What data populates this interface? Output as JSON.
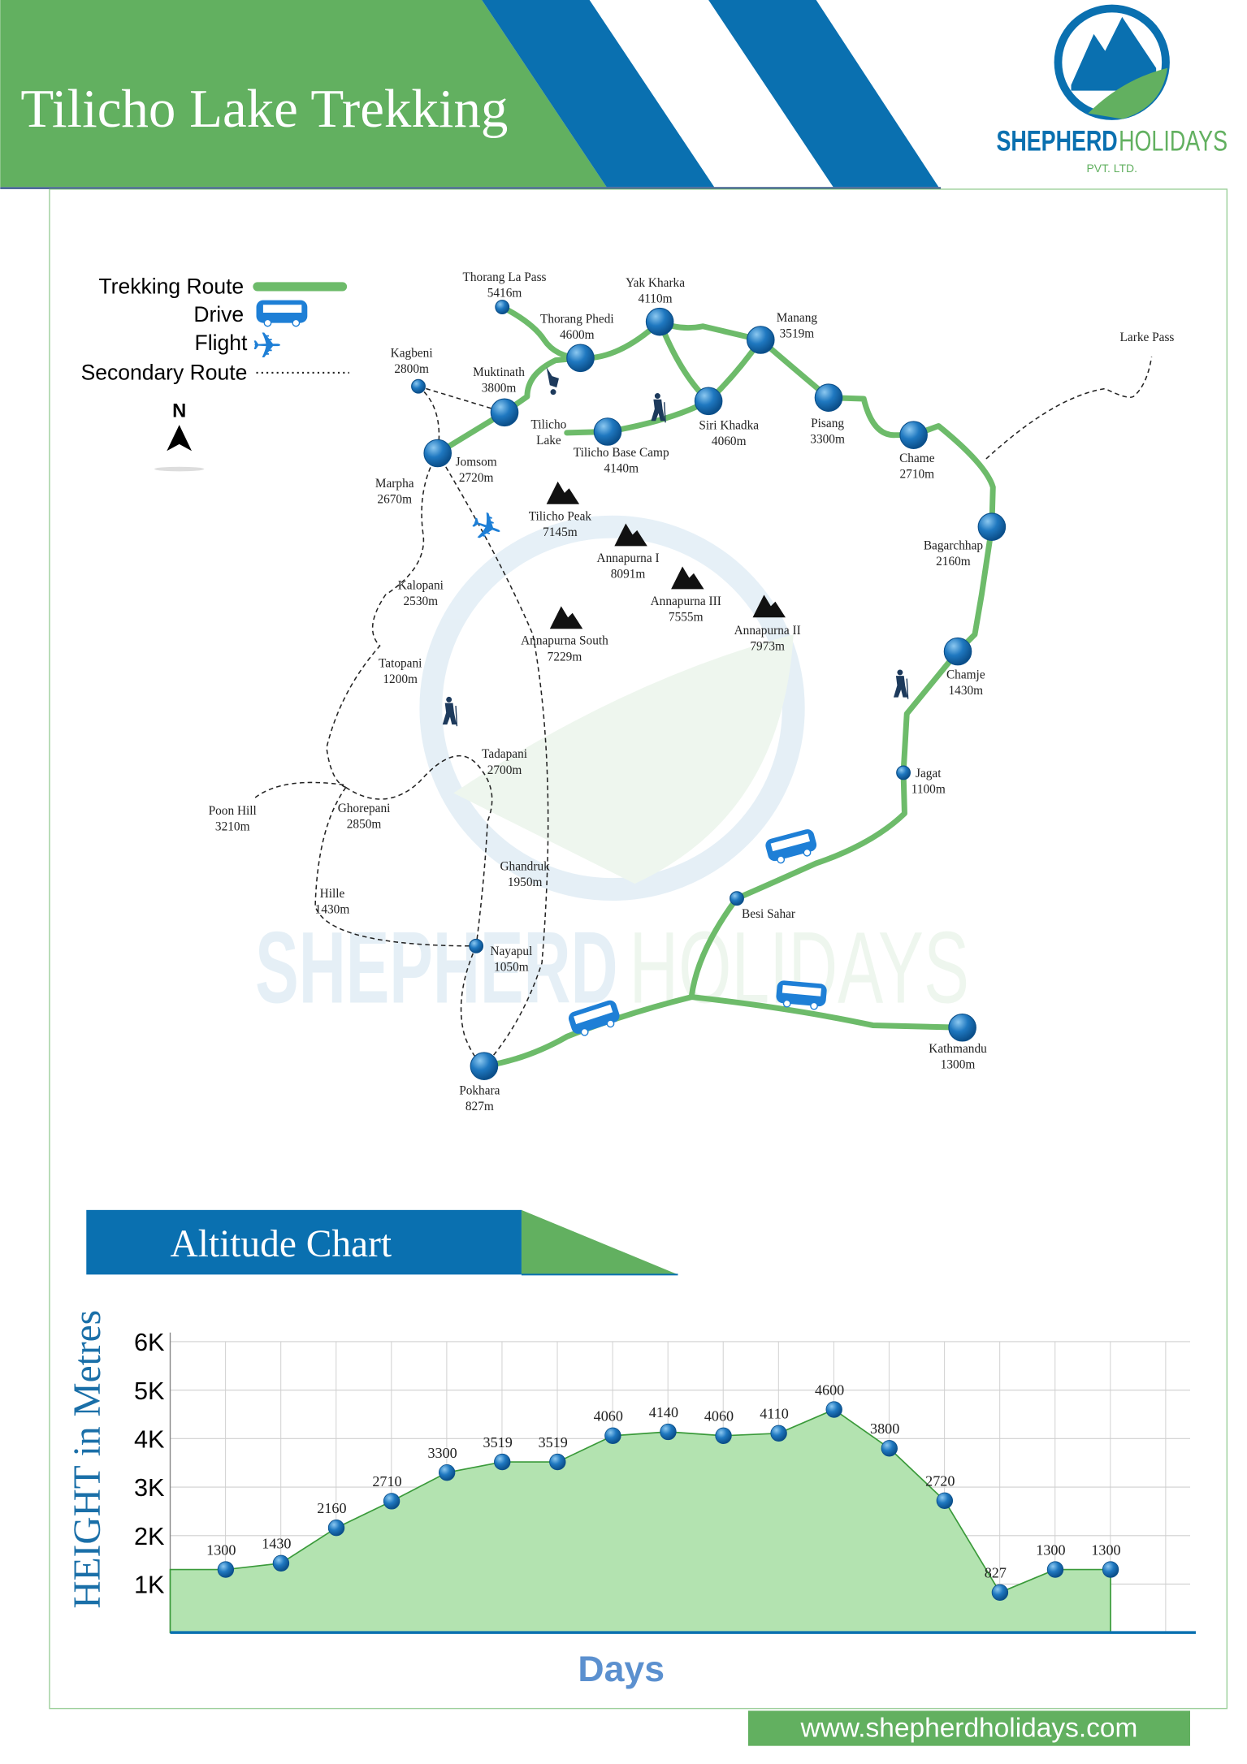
{
  "header": {
    "title": "Tilicho Lake Trekking",
    "brand_main": "SHEPHERD",
    "brand_second": "HOLIDAYS",
    "brand_sub": "PVT. LTD."
  },
  "colors": {
    "green": "#62b060",
    "blue": "#0a70b0",
    "route": "#6dbb6a",
    "fill": "#b3e3b0"
  },
  "legend": {
    "items": [
      {
        "label": "Trekking Route",
        "icon": "green-line"
      },
      {
        "label": "Drive",
        "icon": "bus-icon"
      },
      {
        "label": "Flight",
        "icon": "plane-icon"
      },
      {
        "label": "Secondary Route",
        "icon": "dotted-line"
      }
    ],
    "north": "N"
  },
  "map": {
    "places": [
      {
        "lines": [
          "Thorang La Pass",
          "5416m"
        ]
      },
      {
        "lines": [
          "Thorang Phedi",
          "4600m"
        ]
      },
      {
        "lines": [
          "Yak Kharka",
          "4110m"
        ]
      },
      {
        "lines": [
          "Manang",
          "3519m"
        ]
      },
      {
        "lines": [
          "Kagbeni",
          "2800m"
        ]
      },
      {
        "lines": [
          "Muktinath",
          "3800m"
        ]
      },
      {
        "lines": [
          "Jomsom",
          "2720m"
        ]
      },
      {
        "lines": [
          "Tilicho",
          "Lake"
        ]
      },
      {
        "lines": [
          "Tilicho Base Camp",
          "4140m"
        ]
      },
      {
        "lines": [
          "Siri Khadka",
          "4060m"
        ]
      },
      {
        "lines": [
          "Pisang",
          "3300m"
        ]
      },
      {
        "lines": [
          "Chame",
          "2710m"
        ]
      },
      {
        "lines": [
          "Larke Pass"
        ]
      },
      {
        "lines": [
          "Bagarchhap",
          "2160m"
        ]
      },
      {
        "lines": [
          "Chamje",
          "1430m"
        ]
      },
      {
        "lines": [
          "Jagat",
          "1100m"
        ]
      },
      {
        "lines": [
          "Besi Sahar"
        ]
      },
      {
        "lines": [
          "Kathmandu",
          "1300m"
        ]
      },
      {
        "lines": [
          "Pokhara",
          "827m"
        ]
      },
      {
        "lines": [
          "Nayapul",
          "1050m"
        ]
      },
      {
        "lines": [
          "Ghandruk",
          "1950m"
        ]
      },
      {
        "lines": [
          "Tadapani",
          "2700m"
        ]
      },
      {
        "lines": [
          "Ghorepani",
          "2850m"
        ]
      },
      {
        "lines": [
          "Poon Hill",
          "3210m"
        ]
      },
      {
        "lines": [
          "Hille",
          "1430m"
        ]
      },
      {
        "lines": [
          "Tatopani",
          "1200m"
        ]
      },
      {
        "lines": [
          "Kalopani",
          "2530m"
        ]
      },
      {
        "lines": [
          "Marpha",
          "2670m"
        ]
      }
    ],
    "peaks": [
      {
        "lines": [
          "Tilicho Peak",
          "7145m"
        ]
      },
      {
        "lines": [
          "Annapurna I",
          "8091m"
        ]
      },
      {
        "lines": [
          "Annapurna III",
          "7555m"
        ]
      },
      {
        "lines": [
          "Annapurna II",
          "7973m"
        ]
      },
      {
        "lines": [
          "Annapurna South",
          "7229m"
        ]
      }
    ]
  },
  "chart_section_title": "Altitude Chart",
  "chart_data": {
    "type": "area",
    "title": "Altitude Chart",
    "xlabel": "Days",
    "ylabel": "HEIGHT in Metres",
    "y_ticks": [
      "1K",
      "2K",
      "3K",
      "4K",
      "5K",
      "6K"
    ],
    "ylim": [
      0,
      6000
    ],
    "grid": true,
    "values": [
      1300,
      1430,
      2160,
      2710,
      3300,
      3519,
      3519,
      4060,
      4140,
      4060,
      4110,
      4600,
      3800,
      2720,
      827,
      1300,
      1300
    ],
    "data_labels": [
      "1300",
      "1430",
      "2160",
      "2710",
      "3300",
      "3519",
      "3519",
      "4060",
      "4140",
      "4060",
      "4110",
      "4600",
      "3800",
      "2720",
      "827",
      "1300",
      "1300"
    ]
  },
  "footer": {
    "website": "www.shepherdholidays.com"
  }
}
